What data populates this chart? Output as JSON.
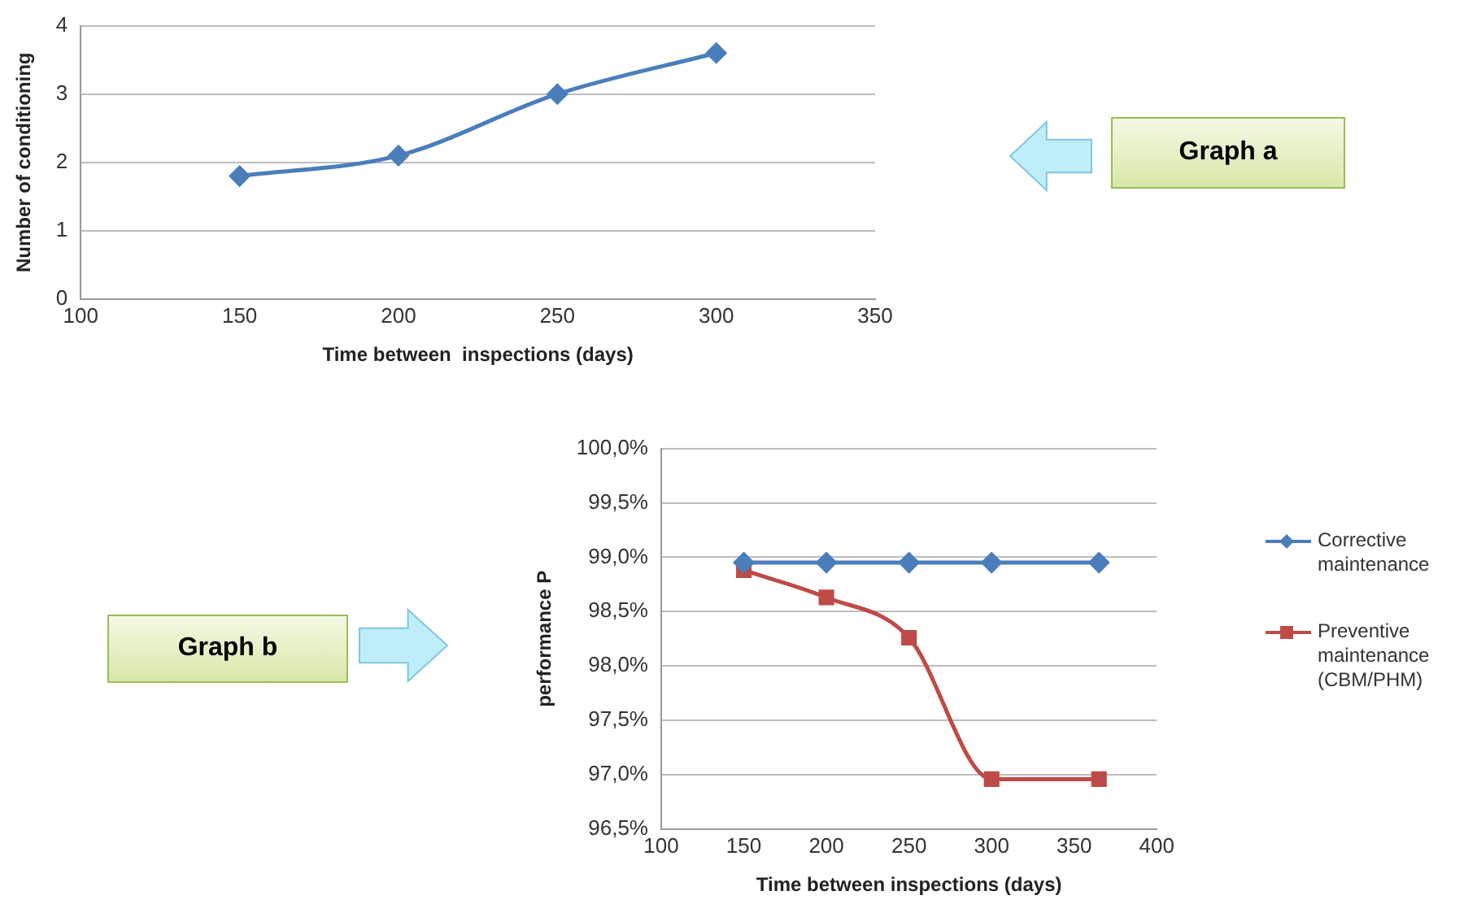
{
  "chart_data": [
    {
      "type": "line",
      "xlabel": "Time between  inspections (days)",
      "ylabel": "Number of conditioning",
      "annotations": [
        "Graph a"
      ],
      "x": [
        150,
        200,
        250,
        300
      ],
      "series": [
        {
          "color": "#4a7ebb",
          "values": [
            1.8,
            2.1,
            3.0,
            3.6
          ]
        }
      ],
      "xlim": [
        100,
        350
      ],
      "xticks": [
        100,
        150,
        200,
        250,
        300,
        350
      ],
      "ylim": [
        0,
        4
      ],
      "yticks": [
        0,
        1,
        2,
        3,
        4
      ],
      "grid": "y",
      "marker": "diamond",
      "legend": false
    },
    {
      "type": "line",
      "xlabel": "Time between inspections (days)",
      "ylabel": "performance P",
      "annotations": [
        "Graph b"
      ],
      "x": [
        150,
        200,
        250,
        300,
        365
      ],
      "series": [
        {
          "name": "Corrective maintenance",
          "color": "#4a7ebb",
          "marker": "diamond",
          "values": [
            98.95,
            98.95,
            98.95,
            98.95,
            98.95
          ]
        },
        {
          "name": "Preventive maintenance (CBM/PHM)",
          "color": "#be4b48",
          "marker": "square",
          "values": [
            98.88,
            98.63,
            98.26,
            96.96,
            96.96
          ]
        }
      ],
      "xlim": [
        100,
        400
      ],
      "xticks": [
        100,
        150,
        200,
        250,
        300,
        350,
        400
      ],
      "ylim": [
        96.5,
        100
      ],
      "yticks": [
        {
          "value": 96.5,
          "label": "96,5%"
        },
        {
          "value": 97,
          "label": "97,0%"
        },
        {
          "value": 97.5,
          "label": "97,5%"
        },
        {
          "value": 98,
          "label": "98,0%"
        },
        {
          "value": 98.5,
          "label": "98,5%"
        },
        {
          "value": 99,
          "label": "99,0%"
        },
        {
          "value": 99.5,
          "label": "99,5%"
        },
        {
          "value": 100,
          "label": "100,0%"
        }
      ],
      "grid": "y",
      "legend": "right"
    }
  ]
}
